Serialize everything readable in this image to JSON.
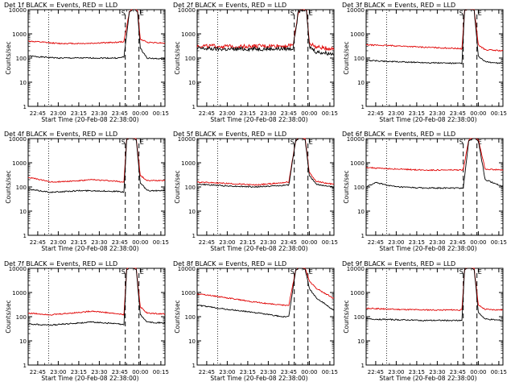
{
  "page": {
    "x_axis_title": "Start Time (20-Feb-08 22:38:00)",
    "y_axis_title": "Counts/sec",
    "x_ticks": [
      "22:45",
      "23:00",
      "23:15",
      "23:30",
      "23:45",
      "00:00",
      "00:15"
    ],
    "y_ticks": [
      "1",
      "10",
      "100",
      "1000",
      "10000"
    ],
    "marker_labels": [
      "S",
      "E"
    ],
    "colors": {
      "events": "#000000",
      "lld": "#e00000",
      "frame": "#000000"
    }
  },
  "chart_data": [
    {
      "type": "line",
      "title": "Det 1f  BLACK = Events, RED = LLD",
      "xlim": [
        "22:38",
        "00:18"
      ],
      "ylim": [
        1,
        10000
      ],
      "yscale": "log",
      "dotted_line_x": "22:53",
      "dashed_lines_x": [
        "23:49",
        "23:59"
      ],
      "series": [
        {
          "name": "Events",
          "color": "#000000",
          "x": [
            "22:38",
            "23:00",
            "23:20",
            "23:44",
            "23:48",
            "23:52",
            "23:55",
            "23:58",
            "00:00",
            "00:05",
            "00:17"
          ],
          "y": [
            120,
            100,
            100,
            100,
            110,
            8000,
            11000,
            8000,
            250,
            100,
            90
          ]
        },
        {
          "name": "LLD",
          "color": "#e00000",
          "x": [
            "22:38",
            "23:00",
            "23:20",
            "23:44",
            "23:48",
            "23:52",
            "23:55",
            "23:58",
            "00:00",
            "00:05",
            "00:17"
          ],
          "y": [
            500,
            400,
            400,
            450,
            480,
            8000,
            12000,
            9000,
            600,
            450,
            420
          ]
        }
      ]
    },
    {
      "type": "line",
      "title": "Det 2f  BLACK = Events, RED = LLD",
      "xlim": [
        "22:38",
        "00:18"
      ],
      "ylim": [
        1,
        10000
      ],
      "yscale": "log",
      "dotted_line_x": "22:53",
      "dashed_lines_x": [
        "23:49",
        "23:59"
      ],
      "series": [
        {
          "name": "Events",
          "color": "#000000",
          "x": [
            "22:38",
            "23:00",
            "23:20",
            "23:44",
            "23:48",
            "23:52",
            "23:55",
            "23:58",
            "00:00",
            "00:05",
            "00:17"
          ],
          "y": [
            250,
            230,
            240,
            240,
            250,
            8000,
            11000,
            8000,
            300,
            180,
            150
          ]
        },
        {
          "name": "LLD",
          "color": "#e00000",
          "x": [
            "22:38",
            "23:00",
            "23:20",
            "23:44",
            "23:48",
            "23:52",
            "23:55",
            "23:58",
            "00:00",
            "00:05",
            "00:17"
          ],
          "y": [
            320,
            300,
            310,
            320,
            340,
            8000,
            12000,
            9000,
            420,
            280,
            240
          ]
        }
      ]
    },
    {
      "type": "line",
      "title": "Det 3f  BLACK = Events, RED = LLD",
      "xlim": [
        "22:38",
        "00:18"
      ],
      "ylim": [
        1,
        10000
      ],
      "yscale": "log",
      "dotted_line_x": "22:53",
      "dashed_lines_x": [
        "23:49",
        "23:59"
      ],
      "series": [
        {
          "name": "Events",
          "color": "#000000",
          "x": [
            "22:38",
            "23:00",
            "23:20",
            "23:44",
            "23:48",
            "23:50",
            "23:53",
            "23:57",
            "00:00",
            "00:05",
            "00:17"
          ],
          "y": [
            80,
            70,
            65,
            60,
            60,
            9000,
            11000,
            9000,
            120,
            70,
            60
          ]
        },
        {
          "name": "LLD",
          "color": "#e00000",
          "x": [
            "22:38",
            "23:00",
            "23:20",
            "23:44",
            "23:48",
            "23:50",
            "23:53",
            "23:57",
            "00:00",
            "00:05",
            "00:17"
          ],
          "y": [
            350,
            320,
            280,
            250,
            240,
            9000,
            12000,
            10000,
            350,
            220,
            200
          ]
        }
      ]
    },
    {
      "type": "line",
      "title": "Det 4f  BLACK = Events, RED = LLD",
      "xlim": [
        "22:38",
        "00:18"
      ],
      "ylim": [
        1,
        10000
      ],
      "yscale": "log",
      "dotted_line_x": "22:53",
      "dashed_lines_x": [
        "23:49",
        "23:59"
      ],
      "series": [
        {
          "name": "Events",
          "color": "#000000",
          "x": [
            "22:38",
            "22:55",
            "23:15",
            "23:25",
            "23:44",
            "23:48",
            "23:50",
            "23:53",
            "23:57",
            "00:00",
            "00:05",
            "00:17"
          ],
          "y": [
            80,
            60,
            70,
            70,
            65,
            60,
            9000,
            11000,
            9000,
            150,
            70,
            70
          ]
        },
        {
          "name": "LLD",
          "color": "#e00000",
          "x": [
            "22:38",
            "22:55",
            "23:15",
            "23:25",
            "23:44",
            "23:48",
            "23:50",
            "23:53",
            "23:57",
            "00:00",
            "00:05",
            "00:17"
          ],
          "y": [
            250,
            160,
            180,
            200,
            170,
            160,
            9000,
            12000,
            10000,
            300,
            180,
            190
          ]
        }
      ]
    },
    {
      "type": "line",
      "title": "Det 5f  BLACK = Events, RED = LLD",
      "xlim": [
        "22:38",
        "00:18"
      ],
      "ylim": [
        1,
        10000
      ],
      "yscale": "log",
      "dotted_line_x": "22:53",
      "dashed_lines_x": [
        "23:49",
        "23:59"
      ],
      "series": [
        {
          "name": "Events",
          "color": "#000000",
          "x": [
            "22:38",
            "23:00",
            "23:20",
            "23:35",
            "23:45",
            "23:50",
            "23:53",
            "23:57",
            "00:00",
            "00:05",
            "00:17"
          ],
          "y": [
            130,
            110,
            100,
            110,
            120,
            8000,
            11000,
            9000,
            300,
            130,
            100
          ]
        },
        {
          "name": "LLD",
          "color": "#e00000",
          "x": [
            "22:38",
            "23:00",
            "23:20",
            "23:35",
            "23:45",
            "23:50",
            "23:53",
            "23:57",
            "00:00",
            "00:05",
            "00:17"
          ],
          "y": [
            160,
            140,
            120,
            140,
            160,
            8000,
            12000,
            10000,
            400,
            170,
            130
          ]
        }
      ]
    },
    {
      "type": "line",
      "title": "Det 6f  BLACK = Events, RED = LLD",
      "xlim": [
        "22:38",
        "00:18"
      ],
      "ylim": [
        1,
        10000
      ],
      "yscale": "log",
      "dotted_line_x": "22:53",
      "dashed_lines_x": [
        "23:49",
        "23:59"
      ],
      "series": [
        {
          "name": "Events",
          "color": "#000000",
          "x": [
            "22:38",
            "22:45",
            "23:00",
            "23:20",
            "23:44",
            "23:49",
            "23:53",
            "23:57",
            "00:00",
            "00:05",
            "00:17"
          ],
          "y": [
            100,
            150,
            100,
            90,
            90,
            90,
            8000,
            11000,
            8000,
            200,
            110
          ]
        },
        {
          "name": "LLD",
          "color": "#e00000",
          "x": [
            "22:38",
            "22:45",
            "23:00",
            "23:20",
            "23:44",
            "23:49",
            "23:53",
            "23:57",
            "00:00",
            "00:05",
            "00:17"
          ],
          "y": [
            650,
            600,
            550,
            500,
            500,
            500,
            9000,
            12000,
            9000,
            550,
            500
          ]
        }
      ]
    },
    {
      "type": "line",
      "title": "Det 7f  BLACK = Events, RED = LLD",
      "xlim": [
        "22:38",
        "00:18"
      ],
      "ylim": [
        1,
        10000
      ],
      "yscale": "log",
      "dotted_line_x": "22:53",
      "dashed_lines_x": [
        "23:49",
        "23:59"
      ],
      "series": [
        {
          "name": "Events",
          "color": "#000000",
          "x": [
            "22:38",
            "22:55",
            "23:15",
            "23:25",
            "23:44",
            "23:48",
            "23:50",
            "23:53",
            "23:57",
            "00:00",
            "00:05",
            "00:17"
          ],
          "y": [
            50,
            45,
            55,
            60,
            50,
            45,
            9000,
            11000,
            9000,
            120,
            60,
            55
          ]
        },
        {
          "name": "LLD",
          "color": "#e00000",
          "x": [
            "22:38",
            "22:55",
            "23:15",
            "23:25",
            "23:44",
            "23:48",
            "23:50",
            "23:53",
            "23:57",
            "00:00",
            "00:05",
            "00:17"
          ],
          "y": [
            140,
            120,
            150,
            170,
            130,
            120,
            9000,
            12000,
            10000,
            250,
            140,
            130
          ]
        }
      ]
    },
    {
      "type": "line",
      "title": "Det 8f  BLACK = Events, RED = LLD",
      "xlim": [
        "22:38",
        "00:18"
      ],
      "ylim": [
        1,
        10000
      ],
      "yscale": "log",
      "dotted_line_x": "22:53",
      "dashed_lines_x": [
        "23:49",
        "23:59"
      ],
      "series": [
        {
          "name": "Events",
          "color": "#000000",
          "x": [
            "22:38",
            "23:00",
            "23:20",
            "23:40",
            "23:45",
            "23:50",
            "23:53",
            "23:57",
            "00:00",
            "00:05",
            "00:17"
          ],
          "y": [
            300,
            200,
            150,
            100,
            100,
            8000,
            11000,
            9000,
            1500,
            600,
            200
          ]
        },
        {
          "name": "LLD",
          "color": "#e00000",
          "x": [
            "22:38",
            "23:00",
            "23:20",
            "23:40",
            "23:45",
            "23:50",
            "23:53",
            "23:57",
            "00:00",
            "00:05",
            "00:17"
          ],
          "y": [
            900,
            600,
            400,
            300,
            300,
            8000,
            12000,
            10000,
            3000,
            1500,
            600
          ]
        }
      ]
    },
    {
      "type": "line",
      "title": "Det 9f  BLACK = Events, RED = LLD",
      "xlim": [
        "22:38",
        "00:18"
      ],
      "ylim": [
        1,
        10000
      ],
      "yscale": "log",
      "dotted_line_x": "22:53",
      "dashed_lines_x": [
        "23:49",
        "23:59"
      ],
      "series": [
        {
          "name": "Events",
          "color": "#000000",
          "x": [
            "22:38",
            "23:00",
            "23:20",
            "23:44",
            "23:48",
            "23:50",
            "23:53",
            "23:57",
            "00:00",
            "00:05",
            "00:17"
          ],
          "y": [
            80,
            75,
            70,
            70,
            70,
            9000,
            11000,
            9000,
            150,
            80,
            70
          ]
        },
        {
          "name": "LLD",
          "color": "#e00000",
          "x": [
            "22:38",
            "23:00",
            "23:20",
            "23:44",
            "23:48",
            "23:50",
            "23:53",
            "23:57",
            "00:00",
            "00:05",
            "00:17"
          ],
          "y": [
            220,
            200,
            190,
            190,
            190,
            9000,
            12000,
            10000,
            300,
            200,
            190
          ]
        }
      ]
    }
  ]
}
